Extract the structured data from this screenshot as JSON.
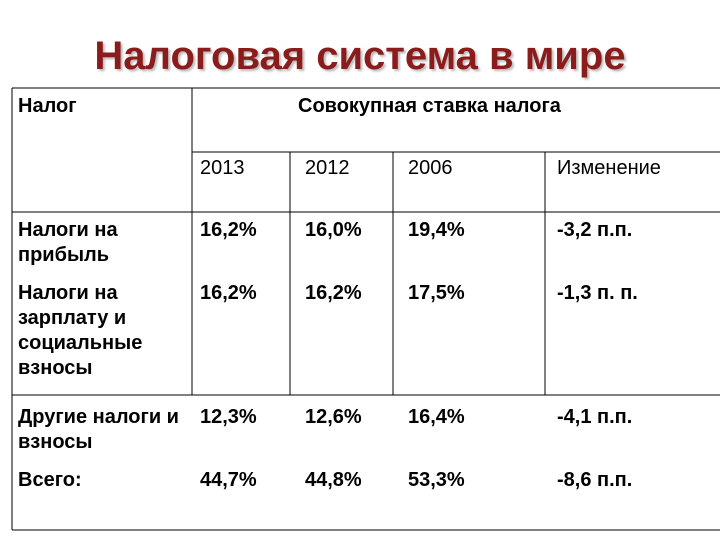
{
  "title": "Налоговая система в мире",
  "table": {
    "header": [
      "Налог",
      "Совокупная ставка налога"
    ],
    "columns": [
      "2013",
      "2012",
      "2006",
      "Изменение"
    ],
    "rows": [
      [
        "Налоги на прибыль",
        "16,2%",
        "16,0%",
        "19,4%",
        "-3,2 п.п."
      ],
      [
        "Налоги на зарплату и социальные взносы",
        "16,2%",
        "16,2%",
        "17,5%",
        "-1,3 п. п."
      ],
      [
        "Другие налоги и взносы",
        "12,3%",
        "12,6%",
        "16,4%",
        "-4,1 п.п."
      ],
      [
        "Всего:",
        "44,7%",
        "44,8%",
        "53,3%",
        "-8,6 п.п."
      ]
    ]
  }
}
